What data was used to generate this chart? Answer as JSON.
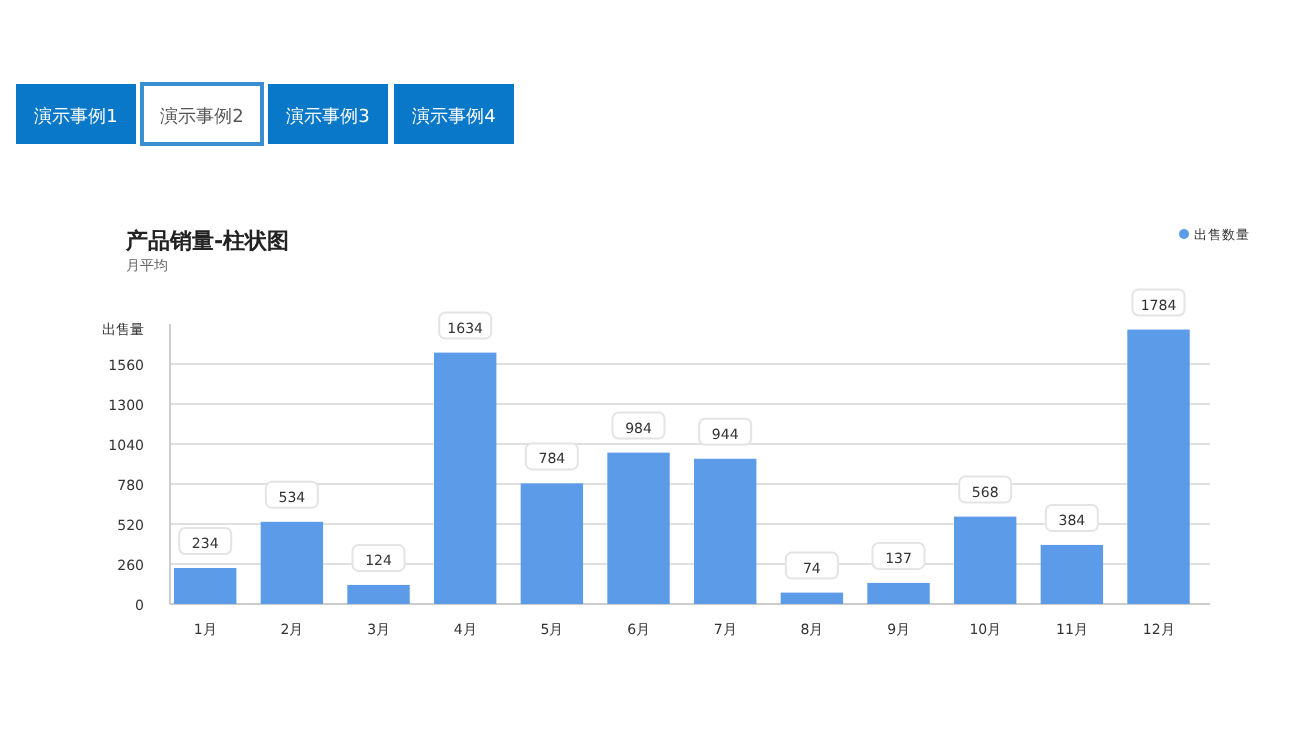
{
  "chart_data": {
    "type": "bar",
    "title": "产品销量-柱状图",
    "subtitle": "月平均",
    "ylabel": "出售量",
    "categories": [
      "1月",
      "2月",
      "3月",
      "4月",
      "5月",
      "6月",
      "7月",
      "8月",
      "9月",
      "10月",
      "11月",
      "12月"
    ],
    "series": [
      {
        "name": "出售数量",
        "color": "#5b9be8",
        "values": [
          234,
          534,
          124,
          1634,
          784,
          984,
          944,
          74,
          137,
          568,
          384,
          1784
        ]
      }
    ],
    "ylim": [
      0,
      1820
    ],
    "yticks": [
      0,
      260,
      520,
      780,
      1040,
      1300,
      1560
    ],
    "grid": "y",
    "legend": "top right",
    "data_labels": true,
    "annotations": [
      "演示事例1",
      "演示事例2",
      "演示事例3",
      "演示事例4"
    ]
  }
}
